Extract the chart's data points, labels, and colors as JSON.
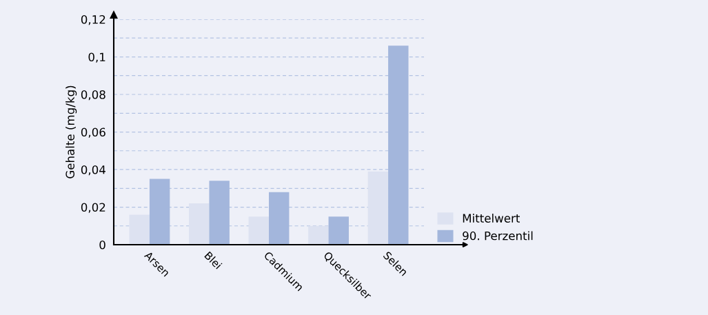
{
  "chart_data": {
    "type": "bar",
    "ylabel": "Gehalte (mg/kg)",
    "categories": [
      "Arsen",
      "Blei",
      "Cadmium",
      "Quecksilber",
      "Selen"
    ],
    "series": [
      {
        "name": "Mittelwert",
        "color": "#dde2f1",
        "values": [
          0.016,
          0.022,
          0.015,
          0.01,
          0.039
        ]
      },
      {
        "name": "90. Perzentil",
        "color": "#a3b6dc",
        "values": [
          0.035,
          0.034,
          0.028,
          0.015,
          0.106
        ]
      }
    ],
    "ylim": [
      0,
      0.12
    ],
    "yticks": [
      {
        "value": 0,
        "label": "0"
      },
      {
        "value": 0.01,
        "label": null
      },
      {
        "value": 0.02,
        "label": "0,02"
      },
      {
        "value": 0.03,
        "label": null
      },
      {
        "value": 0.04,
        "label": "0,04"
      },
      {
        "value": 0.05,
        "label": null
      },
      {
        "value": 0.06,
        "label": "0,06"
      },
      {
        "value": 0.07,
        "label": null
      },
      {
        "value": 0.08,
        "label": "0,08"
      },
      {
        "value": 0.09,
        "label": null
      },
      {
        "value": 0.1,
        "label": "0,1"
      },
      {
        "value": 0.11,
        "label": null
      },
      {
        "value": 0.12,
        "label": "0,12"
      }
    ],
    "grid": "y",
    "legend": "bottom right"
  }
}
